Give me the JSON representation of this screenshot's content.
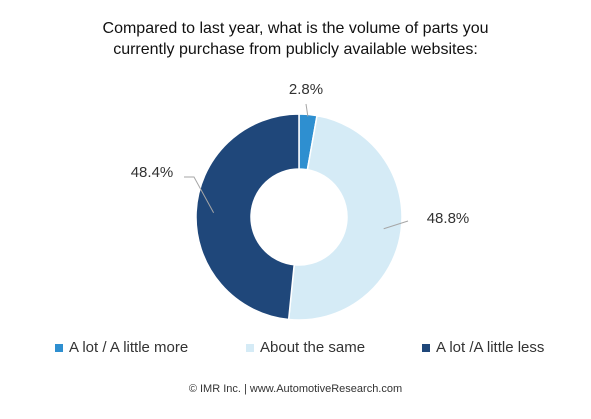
{
  "chart_data": {
    "type": "pie",
    "subtype": "donut",
    "title": "Compared to last year, what is the volume of parts you\ncurrently purchase from publicly available websites:",
    "categories": [
      "A lot / A little more",
      "About the same",
      "A lot /A little less"
    ],
    "values": [
      2.8,
      48.8,
      48.4
    ],
    "value_labels": [
      "2.8%",
      "48.8%",
      "48.4%"
    ],
    "colors": [
      "#2e8fd0",
      "#d5ebf6",
      "#1f477a"
    ],
    "legend_position": "bottom",
    "start_angle": "top, clockwise"
  },
  "footer": {
    "text": "© IMR Inc. | www.AutomotiveResearch.com"
  }
}
